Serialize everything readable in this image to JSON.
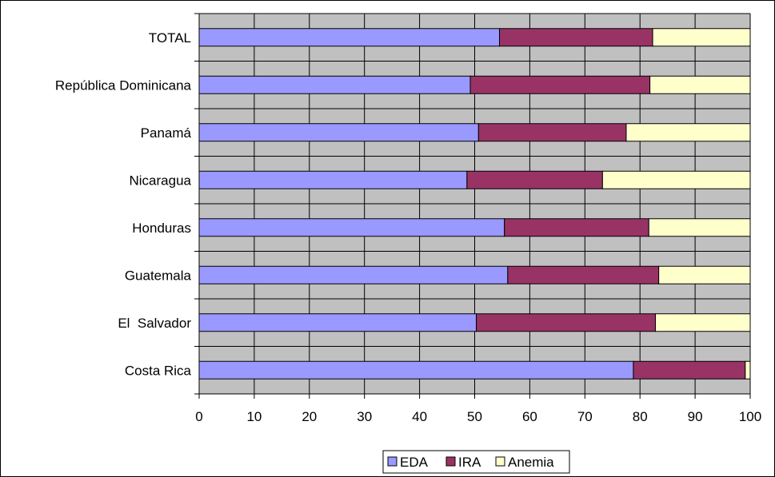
{
  "chart_data": {
    "type": "bar",
    "orientation": "horizontal",
    "stacked": true,
    "title": "",
    "xlabel": "",
    "ylabel": "",
    "xlim": [
      0,
      100
    ],
    "x_ticks": [
      "0",
      "10",
      "20",
      "30",
      "40",
      "50",
      "60",
      "70",
      "80",
      "90",
      "100"
    ],
    "grid": true,
    "legend_position": "bottom",
    "plot_background": "#c0c0c0",
    "categories": [
      "TOTAL",
      "República Dominicana",
      "Panamá",
      "Nicaragua",
      "Honduras",
      "Guatemala",
      "El  Salvador",
      "Costa Rica"
    ],
    "series": [
      {
        "name": "EDA",
        "color": "#9999ff",
        "values": [
          54.5,
          49.2,
          50.7,
          48.6,
          55.4,
          56.0,
          50.3,
          78.8
        ]
      },
      {
        "name": "IRA",
        "color": "#993366",
        "values": [
          27.8,
          32.6,
          26.8,
          24.6,
          26.2,
          27.4,
          32.5,
          20.3
        ]
      },
      {
        "name": "Anemia",
        "color": "#ffffcc",
        "values": [
          17.7,
          18.2,
          22.5,
          26.8,
          18.4,
          16.6,
          17.2,
          0.9
        ]
      }
    ]
  }
}
